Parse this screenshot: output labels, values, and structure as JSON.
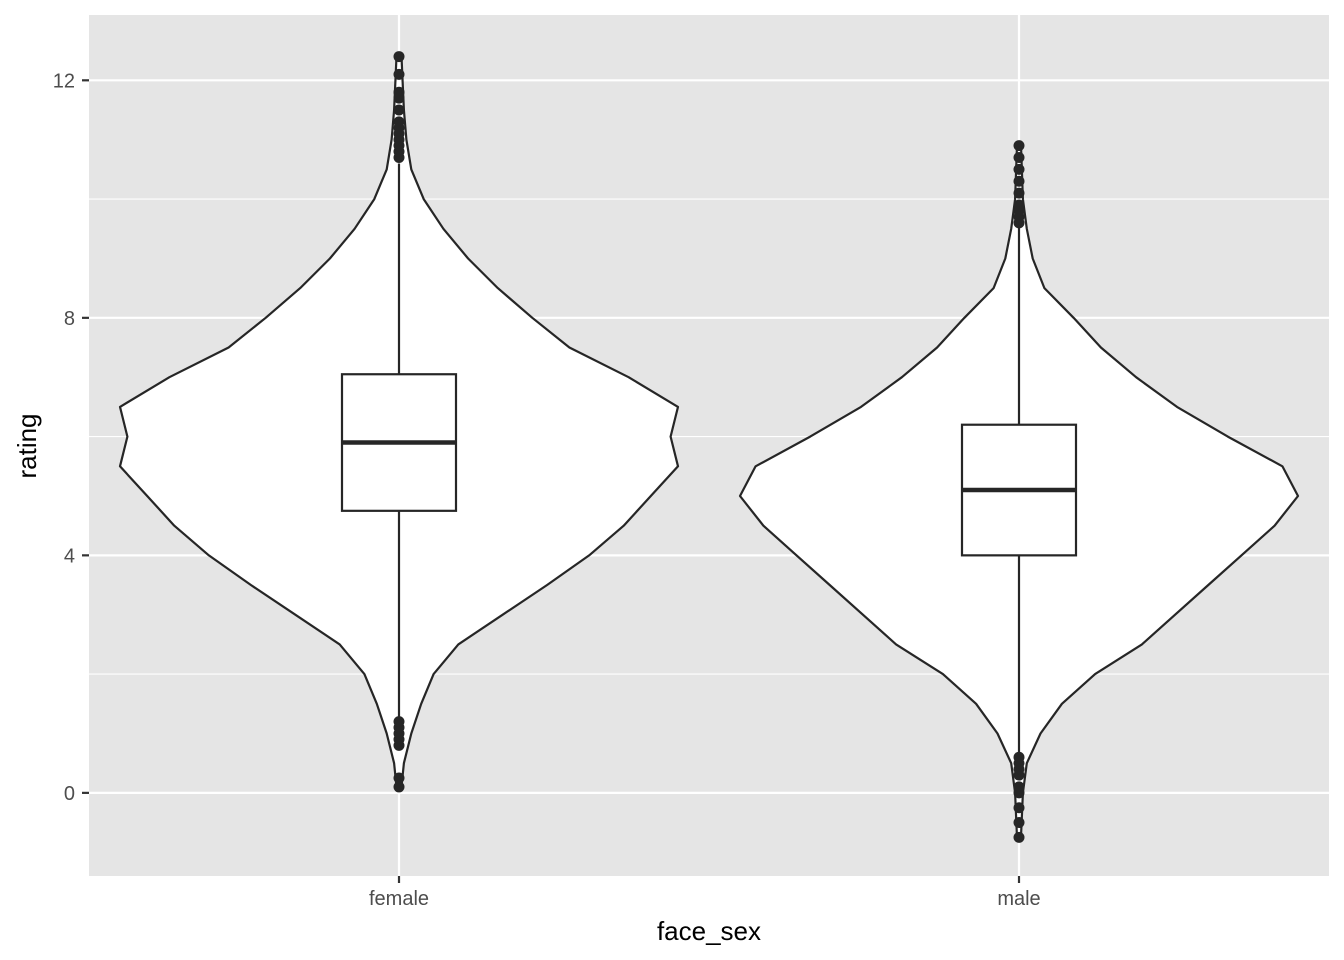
{
  "chart_data": {
    "type": "violin",
    "xlabel": "face_sex",
    "ylabel": "rating",
    "categories": [
      "female",
      "male"
    ],
    "ylim": [
      -1.4,
      13.1
    ],
    "y_ticks": [
      0,
      4,
      8,
      12
    ],
    "y_tick_labels": [
      "0",
      "4",
      "8",
      "12"
    ],
    "grid": true,
    "colors": {
      "panel": "#e5e5e5",
      "grid": "#ffffff",
      "fill": "#ffffff",
      "stroke": "#262626",
      "point": "#262626"
    },
    "series": [
      {
        "category": "female",
        "box": {
          "q1": 4.75,
          "median": 5.9,
          "q3": 7.05,
          "whisker_low": 1.2,
          "whisker_high": 10.6
        },
        "outliers": [
          0.1,
          0.25,
          0.8,
          0.9,
          1.0,
          1.1,
          1.2,
          10.7,
          10.8,
          10.9,
          11.0,
          11.1,
          11.2,
          11.3,
          11.5,
          11.7,
          11.8,
          12.1,
          12.4
        ],
        "violin": [
          [
            0.1,
            0.01
          ],
          [
            0.5,
            0.02
          ],
          [
            1.0,
            0.05
          ],
          [
            1.5,
            0.09
          ],
          [
            2.0,
            0.14
          ],
          [
            2.5,
            0.24
          ],
          [
            3.0,
            0.42
          ],
          [
            3.5,
            0.6
          ],
          [
            4.0,
            0.77
          ],
          [
            4.5,
            0.91
          ],
          [
            5.0,
            1.02
          ],
          [
            5.5,
            1.13
          ],
          [
            6.0,
            1.1
          ],
          [
            6.5,
            1.13
          ],
          [
            7.0,
            0.93
          ],
          [
            7.5,
            0.69
          ],
          [
            8.0,
            0.54
          ],
          [
            8.5,
            0.4
          ],
          [
            9.0,
            0.28
          ],
          [
            9.5,
            0.18
          ],
          [
            10.0,
            0.1
          ],
          [
            10.5,
            0.05
          ],
          [
            11.0,
            0.03
          ],
          [
            11.5,
            0.02
          ],
          [
            12.4,
            0.01
          ]
        ]
      },
      {
        "category": "male",
        "box": {
          "q1": 4.0,
          "median": 5.1,
          "q3": 6.2,
          "whisker_low": 0.65,
          "whisker_high": 9.55
        },
        "outliers": [
          -0.75,
          -0.5,
          -0.25,
          0.0,
          0.1,
          0.3,
          0.4,
          0.5,
          0.6,
          9.6,
          9.7,
          9.8,
          9.9,
          10.1,
          10.3,
          10.5,
          10.7,
          10.9
        ],
        "violin": [
          [
            -0.75,
            0.01
          ],
          [
            0.0,
            0.02
          ],
          [
            0.5,
            0.04
          ],
          [
            1.0,
            0.11
          ],
          [
            1.5,
            0.22
          ],
          [
            2.0,
            0.39
          ],
          [
            2.5,
            0.63
          ],
          [
            3.0,
            0.8
          ],
          [
            3.5,
            0.97
          ],
          [
            4.0,
            1.14
          ],
          [
            4.5,
            1.31
          ],
          [
            5.0,
            1.43
          ],
          [
            5.5,
            1.35
          ],
          [
            6.0,
            1.07
          ],
          [
            6.5,
            0.81
          ],
          [
            7.0,
            0.6
          ],
          [
            7.5,
            0.42
          ],
          [
            8.0,
            0.28
          ],
          [
            8.5,
            0.13
          ],
          [
            9.0,
            0.07
          ],
          [
            9.5,
            0.04
          ],
          [
            10.0,
            0.02
          ],
          [
            10.9,
            0.01
          ]
        ]
      }
    ]
  }
}
